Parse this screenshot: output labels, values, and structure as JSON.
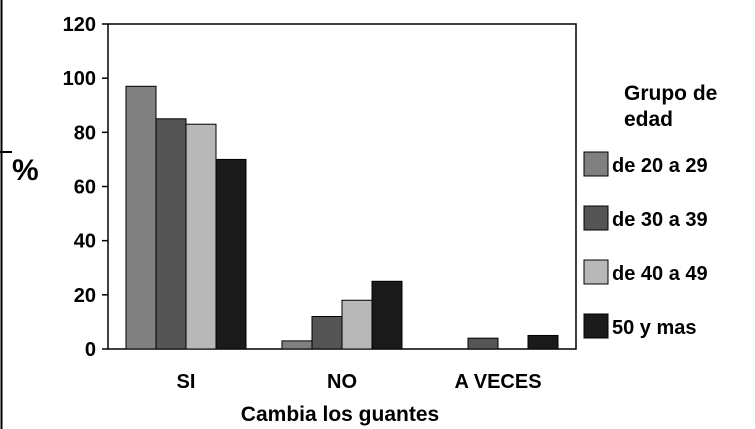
{
  "chart_data": {
    "type": "bar",
    "categories": [
      "SI",
      "NO",
      "A VECES"
    ],
    "series": [
      {
        "name": "de 20 a 29",
        "values": [
          97,
          3,
          0
        ],
        "color": "#808080"
      },
      {
        "name": "de 30 a 39",
        "values": [
          85,
          12,
          4
        ],
        "color": "#555555"
      },
      {
        "name": "de 40 a 49",
        "values": [
          83,
          18,
          0
        ],
        "color": "#b8b8b8"
      },
      {
        "name": "50 y mas",
        "values": [
          70,
          25,
          5
        ],
        "color": "#1a1a1a"
      }
    ],
    "xlabel": "Cambia los guantes",
    "ylabel": "%",
    "ylim": [
      0,
      120
    ],
    "yticks": [
      "0",
      "20",
      "40",
      "60",
      "80",
      "100",
      "120"
    ],
    "legend_title": "Grupo de edad",
    "legend_title_lines": [
      "Grupo de",
      "edad"
    ],
    "legend_position": "right",
    "grid": false
  }
}
